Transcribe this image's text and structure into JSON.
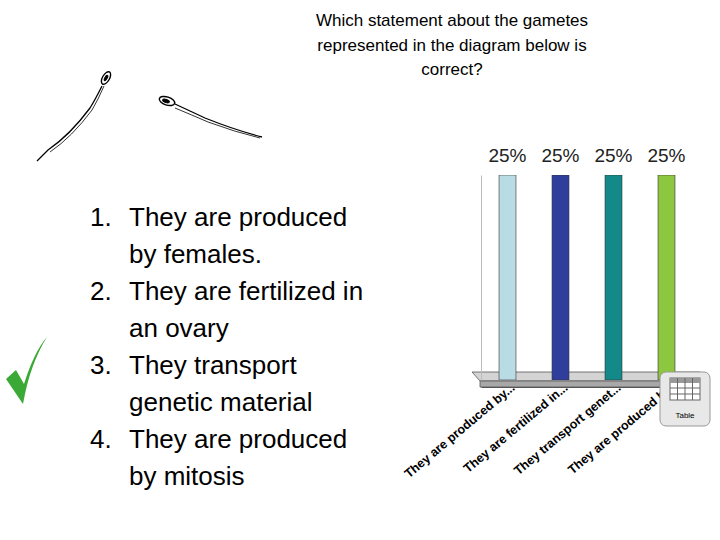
{
  "question_lines": [
    "Which statement about the gametes",
    "represented in the diagram below is",
    "correct?"
  ],
  "options": [
    {
      "number": "1.",
      "lines": [
        "They are produced",
        "by females."
      ]
    },
    {
      "number": "2.",
      "lines": [
        "They are fertilized in",
        "an ovary"
      ]
    },
    {
      "number": "3.",
      "lines": [
        "They transport",
        "genetic material"
      ]
    },
    {
      "number": "4.",
      "lines": [
        "They are produced",
        "by mitosis"
      ]
    }
  ],
  "correct_option": 3,
  "table_button": "Table",
  "chart_data": {
    "type": "bar",
    "categories": [
      "They are produced by...",
      "They are fertilized in...",
      "They transport genet...",
      "They are produced b..."
    ],
    "values": [
      25,
      25,
      25,
      25
    ],
    "value_labels": [
      "25%",
      "25%",
      "25%",
      "25%"
    ],
    "colors": [
      "#b9dbe3",
      "#2f3d9c",
      "#14898a",
      "#8dc73f"
    ],
    "ylim": [
      0,
      25
    ],
    "data_labels": true,
    "tick_labels": "x"
  }
}
